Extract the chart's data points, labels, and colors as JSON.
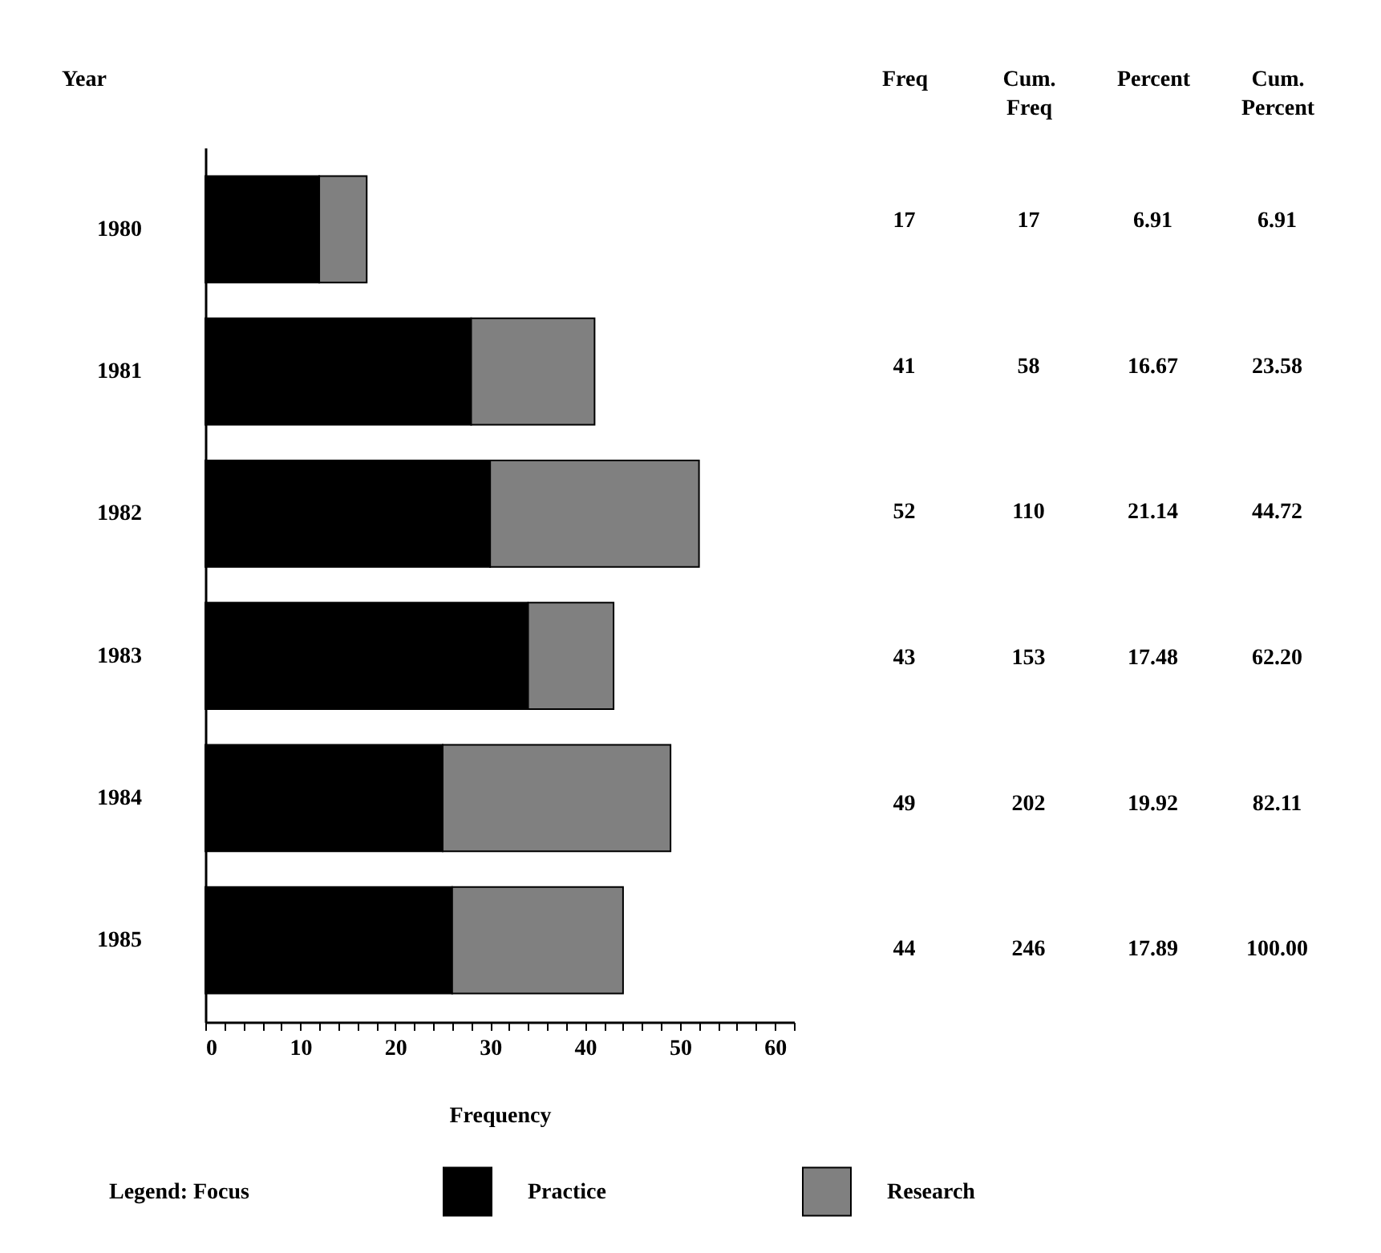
{
  "chart_data": [
    {
      "type": "bar",
      "orientation": "horizontal",
      "stacked": true,
      "xlabel": "Frequency",
      "ylabel": "Year",
      "legend_title": "Legend: Focus",
      "legend": "bottom",
      "categories": [
        "1980",
        "1981",
        "1982",
        "1983",
        "1984",
        "1985"
      ],
      "series": [
        {
          "name": "Practice",
          "color": "#000000",
          "values": [
            12,
            28,
            30,
            34,
            25,
            26
          ]
        },
        {
          "name": "Research",
          "color": "#808080",
          "values": [
            5,
            13,
            22,
            9,
            24,
            18
          ]
        }
      ],
      "xlim": [
        0,
        62
      ],
      "xticks": [
        0,
        {
          "value": 2,
          "label": null
        },
        {
          "value": 4,
          "label": null
        },
        {
          "value": 6,
          "label": null
        },
        {
          "value": 8,
          "label": null
        },
        10,
        {
          "value": 12,
          "label": null
        },
        {
          "value": 14,
          "label": null
        },
        {
          "value": 16,
          "label": null
        },
        {
          "value": 18,
          "label": null
        },
        20,
        {
          "value": 22,
          "label": null
        },
        {
          "value": 24,
          "label": null
        },
        {
          "value": 26,
          "label": null
        },
        {
          "value": 28,
          "label": null
        },
        30,
        {
          "value": 32,
          "label": null
        },
        {
          "value": 34,
          "label": null
        },
        {
          "value": 36,
          "label": null
        },
        {
          "value": 38,
          "label": null
        },
        40,
        {
          "value": 42,
          "label": null
        },
        {
          "value": 44,
          "label": null
        },
        {
          "value": 46,
          "label": null
        },
        {
          "value": 48,
          "label": null
        },
        50,
        {
          "value": 52,
          "label": null
        },
        {
          "value": 54,
          "label": null
        },
        {
          "value": 56,
          "label": null
        },
        {
          "value": 58,
          "label": null
        },
        60,
        {
          "value": 62,
          "label": null
        }
      ]
    },
    {
      "type": "other",
      "categories": [
        "Freq",
        "Cum. Freq",
        "Percent",
        "Cum. Percent"
      ],
      "cell_labels": [
        [
          "17",
          "17",
          "6.91",
          "6.91"
        ],
        [
          "41",
          "58",
          "16.67",
          "23.58"
        ],
        [
          "52",
          "110",
          "21.14",
          "44.72"
        ],
        [
          "43",
          "153",
          "17.48",
          "62.20"
        ],
        [
          "49",
          "202",
          "19.92",
          "82.11"
        ],
        [
          "44",
          "246",
          "17.89",
          "100.00"
        ]
      ]
    }
  ]
}
